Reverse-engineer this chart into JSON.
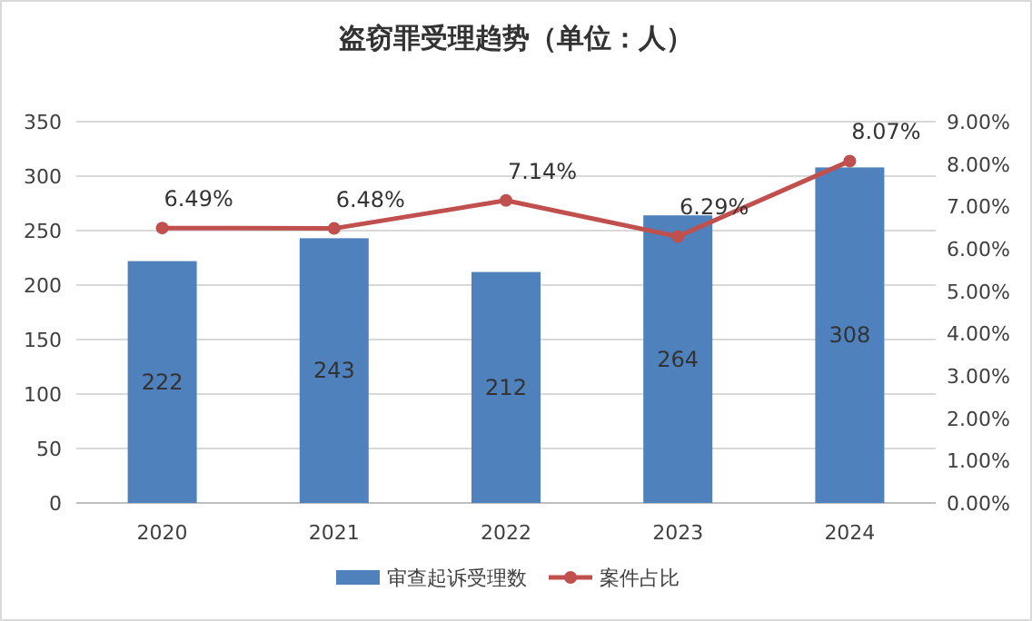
{
  "chart_data": {
    "type": "bar",
    "title": "盗窃罪受理趋势（单位：人）",
    "categories": [
      "2020",
      "2021",
      "2022",
      "2023",
      "2024"
    ],
    "series": [
      {
        "name": "审查起诉受理数",
        "color": "#4f81bd",
        "values": [
          222,
          243,
          212,
          264,
          308
        ],
        "value_labels": [
          "222",
          "243",
          "212",
          "264",
          "308"
        ]
      },
      {
        "name": "案件占比",
        "type": "line",
        "axis": "y2",
        "color": "#c0504d",
        "marker": "circle",
        "values": [
          6.49,
          6.48,
          7.14,
          6.29,
          8.07
        ],
        "value_labels": [
          "6.49%",
          "6.48%",
          "7.14%",
          "6.29%",
          "8.07%"
        ]
      }
    ],
    "ylim": [
      0,
      350
    ],
    "yticks": [
      0,
      50,
      100,
      150,
      200,
      250,
      300,
      350
    ],
    "y2lim": [
      0,
      9
    ],
    "y2ticks": [
      {
        "value": 0,
        "label": "0.00%"
      },
      {
        "value": 1,
        "label": "1.00%"
      },
      {
        "value": 2,
        "label": "2.00%"
      },
      {
        "value": 3,
        "label": "3.00%"
      },
      {
        "value": 4,
        "label": "4.00%"
      },
      {
        "value": 5,
        "label": "5.00%"
      },
      {
        "value": 6,
        "label": "6.00%"
      },
      {
        "value": 7,
        "label": "7.00%"
      },
      {
        "value": 8,
        "label": "8.00%"
      },
      {
        "value": 9,
        "label": "9.00%"
      }
    ],
    "grid": "y",
    "legend": "bottom"
  }
}
